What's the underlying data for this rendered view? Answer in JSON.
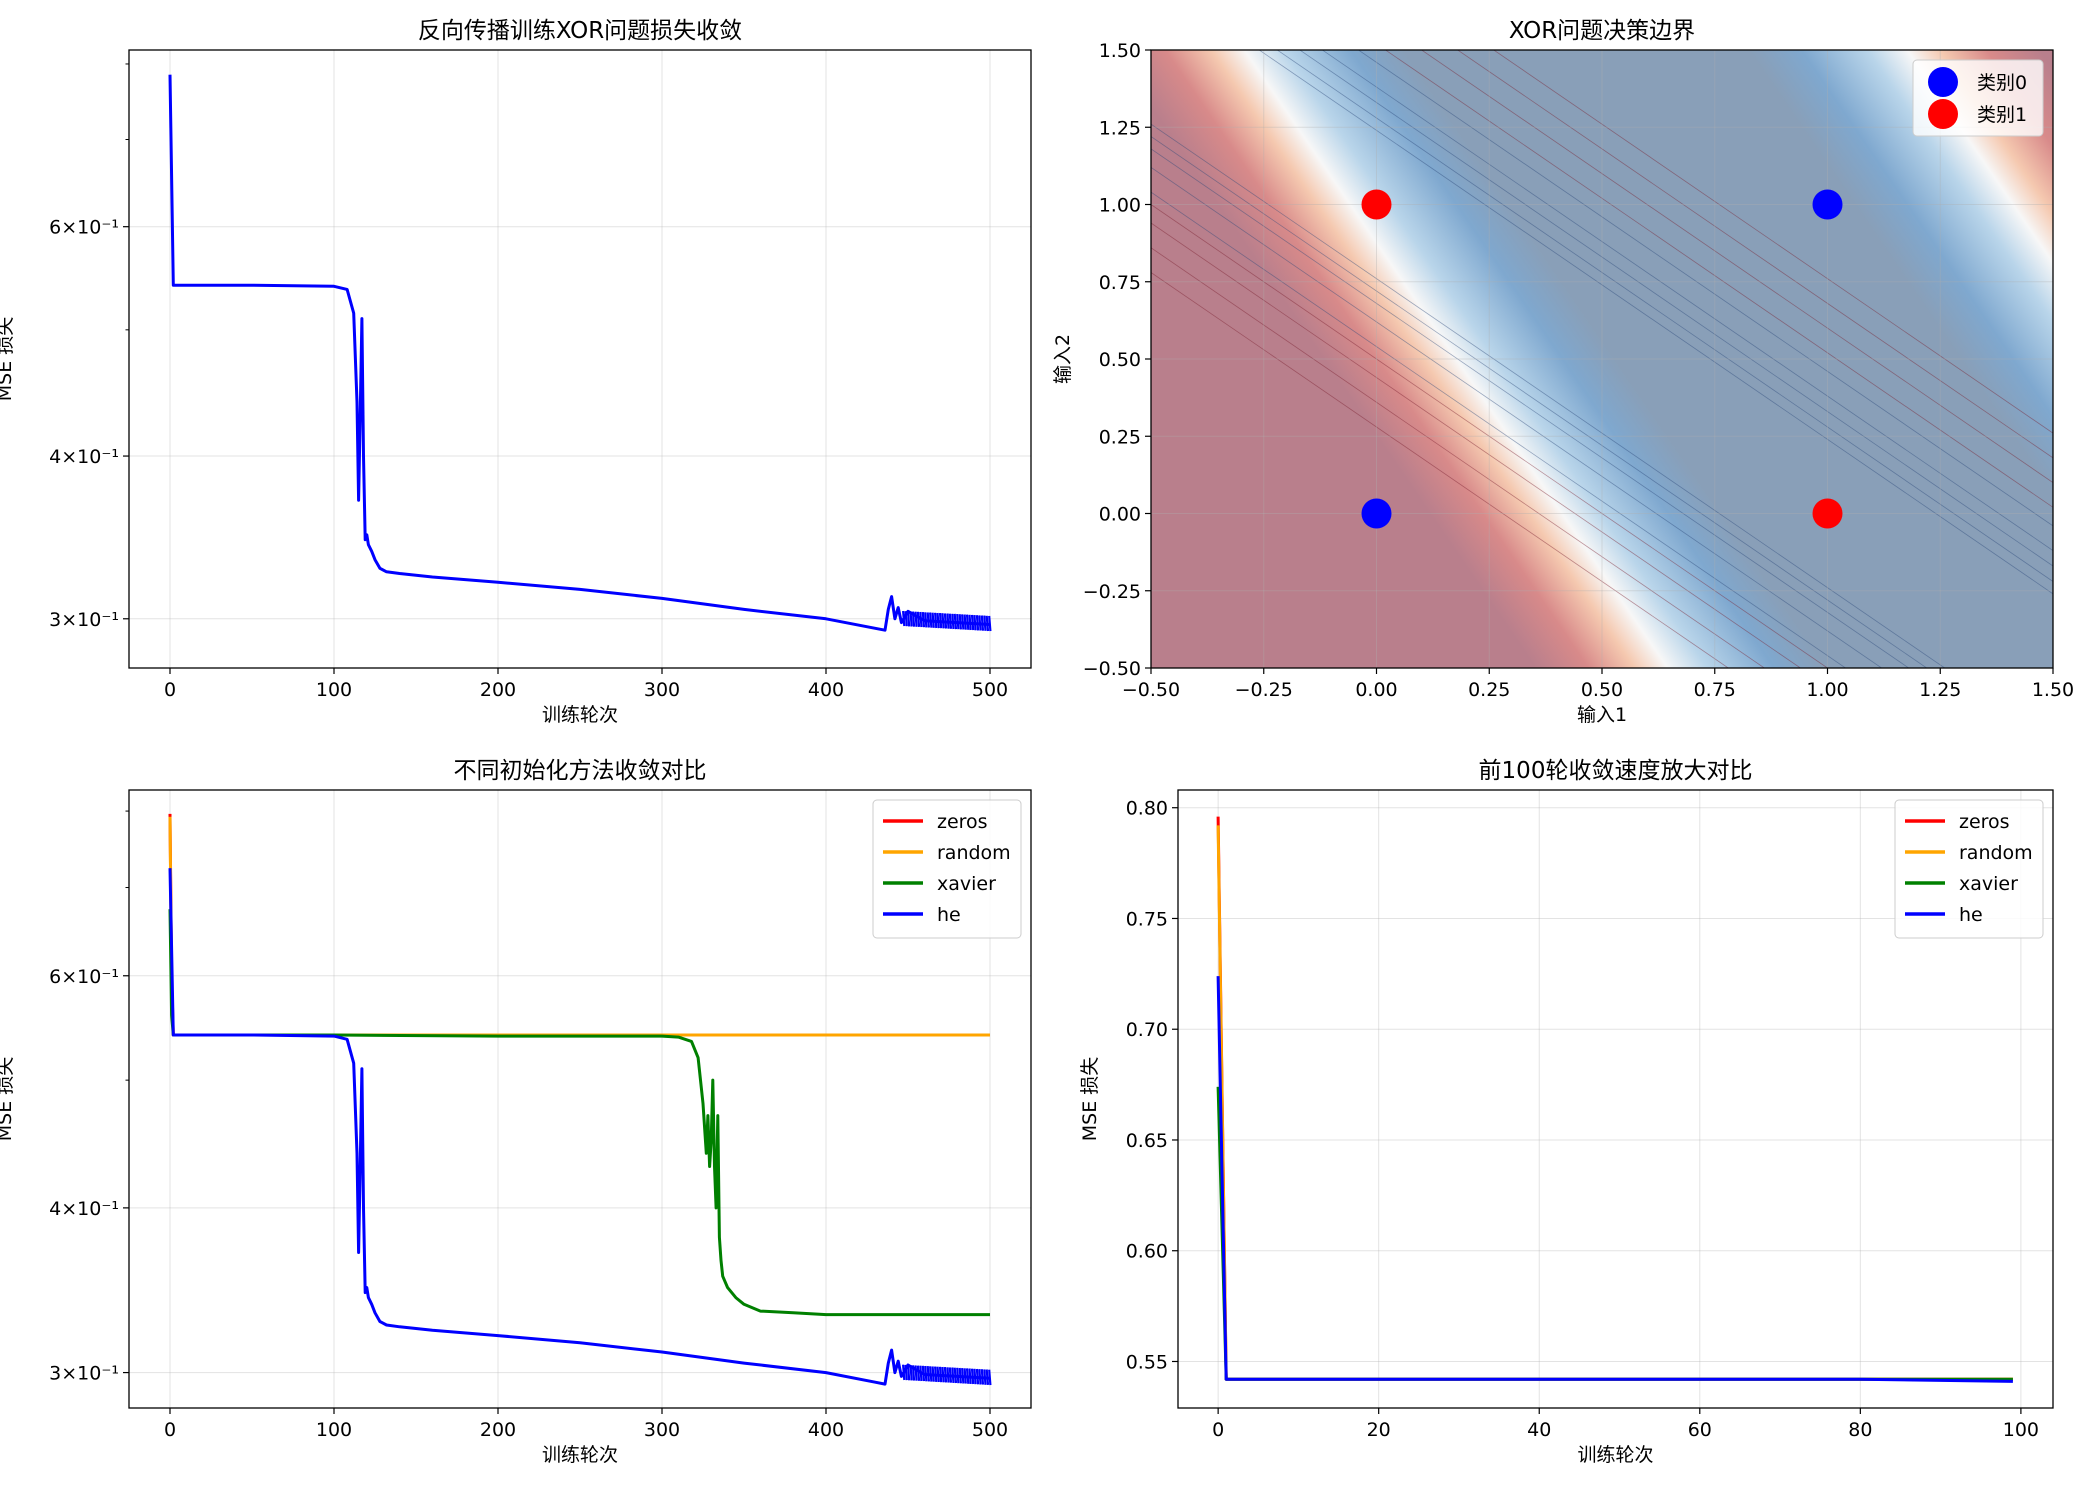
{
  "chart_data": [
    {
      "id": "p1",
      "type": "line",
      "title": "反向传播训练XOR问题损失收敛",
      "xlabel": "训练轮次",
      "ylabel": "MSE 损失",
      "yscale": "log",
      "xlim": [
        -25,
        525
      ],
      "ylim": [
        0.275,
        0.82
      ],
      "xticks": [
        0,
        100,
        200,
        300,
        400,
        500
      ],
      "yticks": [
        {
          "value": 0.3,
          "label": "3×10⁻¹"
        },
        {
          "value": 0.4,
          "label": "4×10⁻¹"
        },
        {
          "value": 0.6,
          "label": "6×10⁻¹"
        }
      ],
      "grid": true,
      "series": [
        {
          "color": "#0000ff",
          "x": [
            0,
            2,
            50,
            100,
            108,
            112,
            114,
            115,
            116,
            117,
            118,
            119,
            120,
            121,
            123,
            125,
            128,
            132,
            140,
            160,
            200,
            250,
            300,
            350,
            400,
            430,
            436,
            438,
            440,
            442,
            444,
            446,
            450,
            460,
            480,
            500
          ],
          "y": [
            0.785,
            0.541,
            0.541,
            0.54,
            0.537,
            0.515,
            0.44,
            0.37,
            0.43,
            0.51,
            0.4,
            0.345,
            0.348,
            0.342,
            0.338,
            0.333,
            0.328,
            0.326,
            0.325,
            0.323,
            0.32,
            0.316,
            0.311,
            0.305,
            0.3,
            0.295,
            0.294,
            0.305,
            0.312,
            0.3,
            0.306,
            0.298,
            0.304,
            0.299,
            0.298,
            0.297
          ]
        }
      ]
    },
    {
      "id": "p2",
      "type": "contour",
      "title": "XOR问题决策边界",
      "xlabel": "输入1",
      "ylabel": "输入2",
      "xlim": [
        -0.5,
        1.5
      ],
      "ylim": [
        -0.5,
        1.5
      ],
      "xticks": [
        -0.5,
        -0.25,
        0.0,
        0.25,
        0.5,
        0.75,
        1.0,
        1.25,
        1.5
      ],
      "yticks": [
        -0.5,
        -0.25,
        0.0,
        0.25,
        0.5,
        0.75,
        1.0,
        1.25,
        1.5
      ],
      "tick_format": "0.00",
      "colormap": "RdBu",
      "boundary_lines": [
        {
          "slope": -1,
          "intercept": 0.58,
          "role": "lower-boundary"
        },
        {
          "slope": -1,
          "intercept": 1.42,
          "role": "upper-boundary"
        }
      ],
      "points": [
        {
          "label": "类别0",
          "color": "#0000ff",
          "x": [
            0,
            1
          ],
          "y": [
            0,
            1
          ]
        },
        {
          "label": "类别1",
          "color": "#ff0000",
          "x": [
            0,
            1
          ],
          "y": [
            1,
            0
          ]
        }
      ],
      "legend": {
        "placement": "upper right",
        "entries": [
          "类别0",
          "类别1"
        ]
      },
      "grid": true
    },
    {
      "id": "p3",
      "type": "line",
      "title": "不同初始化方法收敛对比",
      "xlabel": "训练轮次",
      "ylabel": "MSE 损失",
      "yscale": "log",
      "xlim": [
        -25,
        525
      ],
      "ylim": [
        0.282,
        0.83
      ],
      "xticks": [
        0,
        100,
        200,
        300,
        400,
        500
      ],
      "yticks": [
        {
          "value": 0.3,
          "label": "3×10⁻¹"
        },
        {
          "value": 0.4,
          "label": "4×10⁻¹"
        },
        {
          "value": 0.6,
          "label": "6×10⁻¹"
        }
      ],
      "grid": true,
      "legend": {
        "placement": "upper right"
      },
      "series": [
        {
          "name": "zeros",
          "color": "#ff0000",
          "x": [
            0,
            1,
            2,
            100,
            200,
            300,
            400,
            500
          ],
          "y": [
            0.796,
            0.6,
            0.541,
            0.541,
            0.541,
            0.541,
            0.541,
            0.541
          ]
        },
        {
          "name": "random",
          "color": "#ffa500",
          "x": [
            0,
            1,
            2,
            100,
            200,
            300,
            400,
            500
          ],
          "y": [
            0.792,
            0.59,
            0.541,
            0.541,
            0.541,
            0.541,
            0.541,
            0.541
          ]
        },
        {
          "name": "xavier",
          "color": "#008000",
          "x": [
            0,
            1,
            2,
            100,
            200,
            300,
            310,
            318,
            322,
            325,
            327,
            328,
            329,
            330,
            331,
            332,
            333,
            334,
            335,
            336,
            337,
            340,
            345,
            350,
            360,
            380,
            400,
            450,
            500
          ],
          "y": [
            0.674,
            0.56,
            0.541,
            0.541,
            0.54,
            0.54,
            0.539,
            0.535,
            0.52,
            0.48,
            0.44,
            0.47,
            0.43,
            0.45,
            0.5,
            0.43,
            0.4,
            0.47,
            0.38,
            0.365,
            0.355,
            0.348,
            0.342,
            0.338,
            0.334,
            0.333,
            0.332,
            0.332,
            0.332
          ]
        },
        {
          "name": "he",
          "color": "#0000ff",
          "x": [
            0,
            2,
            50,
            100,
            108,
            112,
            114,
            115,
            116,
            117,
            118,
            119,
            120,
            121,
            123,
            125,
            128,
            132,
            140,
            160,
            200,
            250,
            300,
            350,
            400,
            430,
            436,
            438,
            440,
            442,
            444,
            446,
            450,
            460,
            480,
            500
          ],
          "y": [
            0.724,
            0.541,
            0.541,
            0.54,
            0.537,
            0.515,
            0.44,
            0.37,
            0.43,
            0.51,
            0.4,
            0.345,
            0.348,
            0.342,
            0.338,
            0.333,
            0.328,
            0.326,
            0.325,
            0.323,
            0.32,
            0.316,
            0.311,
            0.305,
            0.3,
            0.295,
            0.294,
            0.305,
            0.312,
            0.3,
            0.306,
            0.298,
            0.304,
            0.299,
            0.298,
            0.297
          ]
        }
      ]
    },
    {
      "id": "p4",
      "type": "line",
      "title": "前100轮收敛速度放大对比",
      "xlabel": "训练轮次",
      "ylabel": "MSE 损失",
      "yscale": "linear",
      "xlim": [
        -5,
        104
      ],
      "ylim": [
        0.529,
        0.808
      ],
      "xticks": [
        0,
        20,
        40,
        60,
        80,
        100
      ],
      "yticks": [
        {
          "value": 0.55,
          "label": "0.55"
        },
        {
          "value": 0.6,
          "label": "0.60"
        },
        {
          "value": 0.65,
          "label": "0.65"
        },
        {
          "value": 0.7,
          "label": "0.70"
        },
        {
          "value": 0.75,
          "label": "0.75"
        },
        {
          "value": 0.8,
          "label": "0.80"
        }
      ],
      "grid": true,
      "legend": {
        "placement": "upper right"
      },
      "series": [
        {
          "name": "zeros",
          "color": "#ff0000",
          "x": [
            0,
            1,
            20,
            40,
            60,
            80,
            99
          ],
          "y": [
            0.796,
            0.542,
            0.542,
            0.542,
            0.542,
            0.542,
            0.542
          ]
        },
        {
          "name": "random",
          "color": "#ffa500",
          "x": [
            0,
            1,
            20,
            40,
            60,
            80,
            99
          ],
          "y": [
            0.792,
            0.542,
            0.542,
            0.542,
            0.542,
            0.542,
            0.542
          ]
        },
        {
          "name": "xavier",
          "color": "#008000",
          "x": [
            0,
            1,
            20,
            40,
            60,
            80,
            99
          ],
          "y": [
            0.674,
            0.542,
            0.542,
            0.542,
            0.542,
            0.542,
            0.542
          ]
        },
        {
          "name": "he",
          "color": "#0000ff",
          "x": [
            0,
            1,
            20,
            40,
            60,
            80,
            99
          ],
          "y": [
            0.724,
            0.542,
            0.542,
            0.542,
            0.542,
            0.542,
            0.541
          ]
        }
      ]
    }
  ]
}
